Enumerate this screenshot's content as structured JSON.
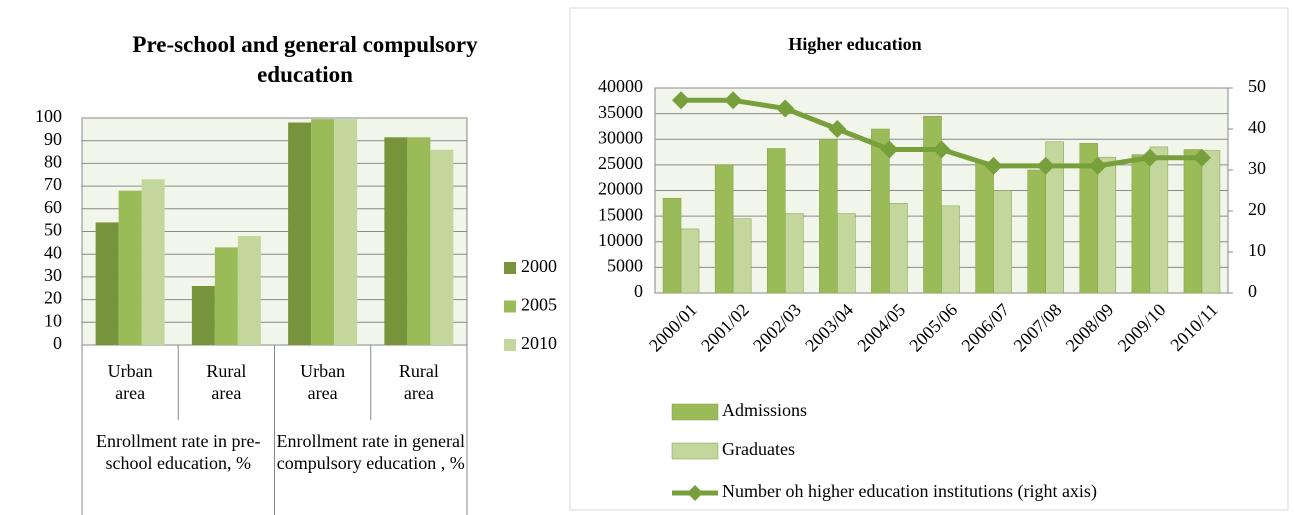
{
  "chart_data": [
    {
      "type": "bar",
      "title": "Pre-school and general compulsory education",
      "categories": [
        "Urban area",
        "Rural area",
        "Urban area",
        "Rural area"
      ],
      "groups": [
        "Enrollment rate in pre-school education, %",
        "Enrollment rate in general compulsory education , %"
      ],
      "series": [
        {
          "name": "2000",
          "color": "#77933c",
          "values": [
            54,
            26,
            98,
            91.5
          ]
        },
        {
          "name": "2005",
          "color": "#9bbb59",
          "values": [
            68,
            43,
            99.5,
            91.5
          ]
        },
        {
          "name": "2010",
          "color": "#c3d69b",
          "values": [
            73,
            48,
            99.5,
            86
          ]
        }
      ],
      "ylim": [
        0,
        100
      ],
      "yticks": [
        0,
        10,
        20,
        30,
        40,
        50,
        60,
        70,
        80,
        90,
        100
      ],
      "grid": true
    },
    {
      "type": "bar-line",
      "title": "Higher education",
      "categories": [
        "2000/01",
        "2001/02",
        "2002/03",
        "2003/04",
        "2004/05",
        "2005/06",
        "2006/07",
        "2007/08",
        "2008/09",
        "2009/10",
        "2010/11"
      ],
      "series": [
        {
          "name": "Admissions",
          "color": "#9bbb59",
          "values": [
            18500,
            25000,
            28200,
            30000,
            32000,
            34500,
            25500,
            24000,
            29200,
            27000,
            28000
          ]
        },
        {
          "name": "Graduates",
          "color": "#c3d69b",
          "values": [
            12500,
            14500,
            15500,
            15500,
            17500,
            17000,
            20000,
            29500,
            26500,
            28500,
            27800
          ]
        },
        {
          "name": "Number oh higher education institutions (right axis)",
          "color": "#77a03c",
          "axis": "y2",
          "values": [
            47,
            47,
            45,
            40,
            35,
            35,
            31,
            31,
            31,
            33,
            33
          ]
        }
      ],
      "ylim": [
        0,
        40000
      ],
      "yticks": [
        0,
        5000,
        10000,
        15000,
        20000,
        25000,
        30000,
        35000,
        40000
      ],
      "y2lim": [
        0,
        50
      ],
      "y2ticks": [
        0,
        10,
        20,
        30,
        40,
        50
      ],
      "grid": true
    }
  ]
}
